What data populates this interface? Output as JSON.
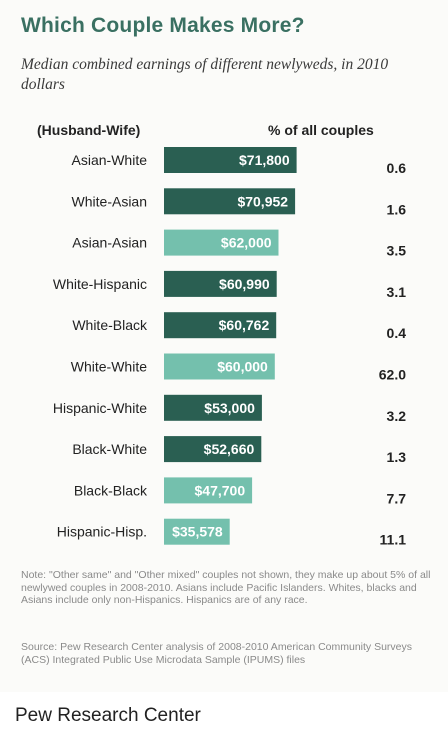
{
  "title": "Which Couple Makes More?",
  "subtitle": "Median combined earnings of different newlyweds, in 2010 dollars",
  "column_headers": {
    "category": "(Husband-Wife)",
    "percent": "% of all couples"
  },
  "colors": {
    "dark_bar": "#2a5f52",
    "light_bar": "#74c0ad",
    "title": "#3a7062"
  },
  "chart_data": {
    "type": "bar",
    "orientation": "horizontal",
    "title": "Which Couple Makes More?",
    "subtitle": "Median combined earnings of different newlyweds, in 2010 dollars",
    "categories": [
      "Asian-White",
      "White-Asian",
      "Asian-Asian",
      "White-Hispanic",
      "White-Black",
      "White-White",
      "Hispanic-White",
      "Black-White",
      "Black-Black",
      "Hispanic-Hisp."
    ],
    "series": [
      {
        "name": "",
        "values": [
          71800,
          70952,
          62000,
          60990,
          60762,
          60000,
          53000,
          52660,
          47700,
          35578
        ],
        "labels": [
          "$71,800",
          "$70,952",
          "$62,000",
          "$60,990",
          "$60,762",
          "$60,000",
          "$53,000",
          "$52,660",
          "$47,700",
          "$35,578"
        ],
        "shade": [
          "dark",
          "dark",
          "light",
          "dark",
          "dark",
          "light",
          "dark",
          "dark",
          "light",
          "light"
        ]
      }
    ],
    "percent_of_couples": [
      "0.6",
      "1.6",
      "3.5",
      "3.1",
      "0.4",
      "62.0",
      "3.2",
      "1.3",
      "7.7",
      "11.1"
    ],
    "xlabel": "",
    "ylabel": "(Husband-Wife)",
    "grid": false,
    "legend": "none"
  },
  "note": "Note: \"Other same\" and \"Other mixed\" couples not shown, they make up about 5% of all newlywed couples in 2008-2010. Asians include Pacific Islanders. Whites, blacks and Asians include only non-Hispanics. Hispanics are of any race.",
  "source": "Source: Pew Research Center analysis of 2008-2010 American Community Surveys (ACS) Integrated Public Use Microdata Sample (IPUMS) files",
  "caption": "Pew Research Center"
}
